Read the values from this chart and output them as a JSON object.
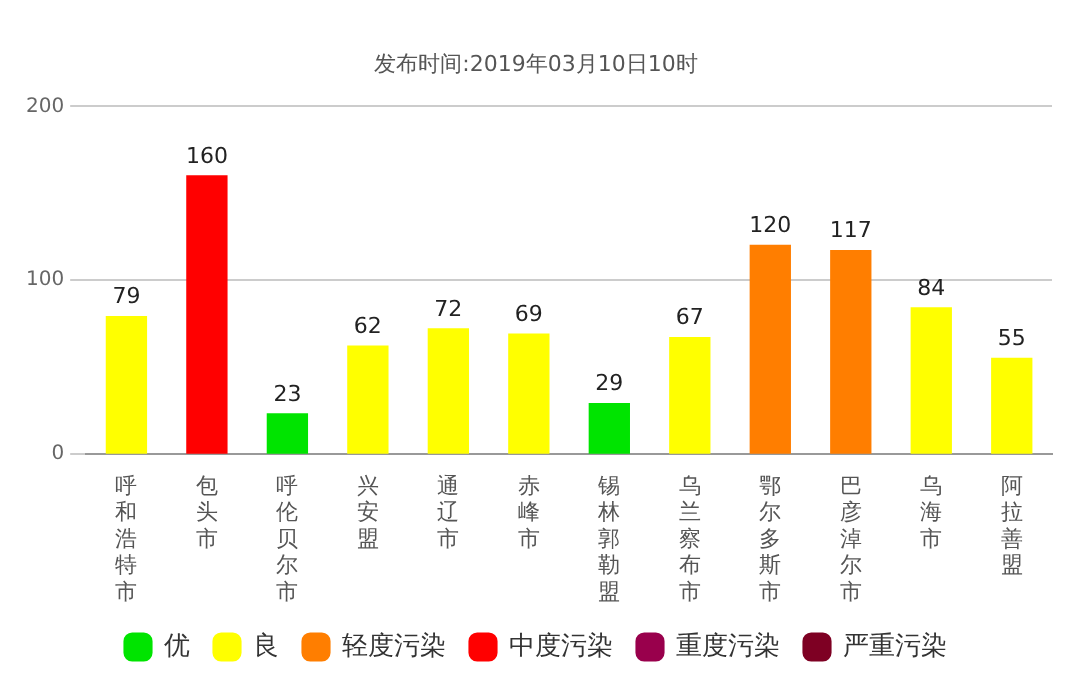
{
  "chart_data": {
    "type": "bar",
    "title": "发布时间:2019年03月10日10时",
    "categories": [
      "呼和浩特市",
      "包头市",
      "呼伦贝尔市",
      "兴安盟",
      "通辽市",
      "赤峰市",
      "锡林郭勒盟",
      "乌兰察布市",
      "鄂尔多斯市",
      "巴彦淖尔市",
      "乌海市",
      "阿拉善盟"
    ],
    "series": [
      {
        "name": "优",
        "color": "#00e400",
        "values": [
          null,
          null,
          23,
          null,
          null,
          null,
          29,
          null,
          null,
          null,
          null,
          null
        ]
      },
      {
        "name": "良",
        "color": "#ffff00",
        "values": [
          79,
          null,
          null,
          62,
          72,
          69,
          null,
          67,
          null,
          null,
          84,
          55
        ]
      },
      {
        "name": "轻度污染",
        "color": "#ff7e00",
        "values": [
          null,
          null,
          null,
          null,
          null,
          null,
          null,
          null,
          120,
          117,
          null,
          null
        ]
      },
      {
        "name": "中度污染",
        "color": "#ff0000",
        "values": [
          null,
          160,
          null,
          null,
          null,
          null,
          null,
          null,
          null,
          null,
          null,
          null
        ]
      },
      {
        "name": "重度污染",
        "color": "#99004c",
        "values": [
          null,
          null,
          null,
          null,
          null,
          null,
          null,
          null,
          null,
          null,
          null,
          null
        ]
      },
      {
        "name": "严重污染",
        "color": "#7e0023",
        "values": [
          null,
          null,
          null,
          null,
          null,
          null,
          null,
          null,
          null,
          null,
          null,
          null
        ]
      }
    ],
    "ylim": [
      0,
      200
    ],
    "yticks": [
      0,
      100,
      200
    ],
    "grid": "y",
    "legend": "bottom",
    "data_labels": true
  }
}
